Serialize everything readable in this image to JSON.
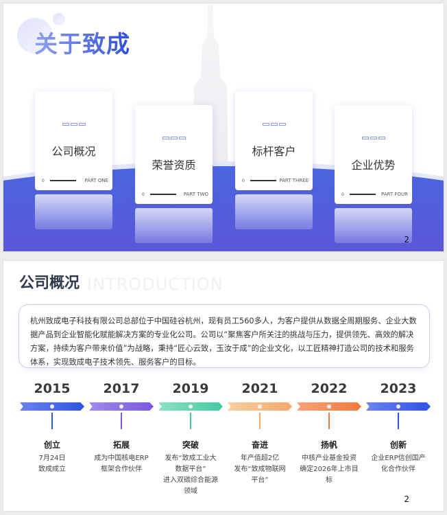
{
  "slide1": {
    "title": "关于致成",
    "page": "2",
    "cards": [
      {
        "title": "公司概况",
        "num": "0",
        "part": "PART ONE"
      },
      {
        "title": "荣誉资质",
        "num": "0",
        "part": "PART TWO"
      },
      {
        "title": "标杆客户",
        "num": "0",
        "part": "PART  THREE"
      },
      {
        "title": "企业优势",
        "num": "0",
        "part": "PART FOUR"
      }
    ]
  },
  "slide2": {
    "title": "公司概况",
    "watermark": "INTRODUCTION",
    "page": "2",
    "intro": "杭州致成电子科技有限公司总部位于中国硅谷杭州，现有员工560多人，为客户提供从数据全周期服务、企业大数据产品到企业智能化赋能解决方案的专业化公司。公司以“聚焦客户所关注的挑战与压力，提供领先、高效的解决方案，持续为客户带来价值”为战略，秉持“匠心云致，玉汝于成”的企业文化，以工匠精神打造公司的技术和服务体系，实现致成电子技术领先、服务客户的目标。",
    "timeline": [
      {
        "year": "2015",
        "title": "创立",
        "desc": "7月24日\n致成成立",
        "color": "#2f52e6",
        "color2": "#6b83f0"
      },
      {
        "year": "2017",
        "title": "拓展",
        "desc": "成为中国核电ERP\n框架合作伙伴",
        "color": "#7a5ae0",
        "color2": "#a08ae8"
      },
      {
        "year": "2019",
        "title": "突破",
        "desc": "发布“致成工业大\n数据平台”\n进入双碳综合能源\n领域",
        "color": "#43c9a0",
        "color2": "#8ee0c5"
      },
      {
        "year": "2021",
        "title": "奋进",
        "desc": "年产值超2亿\n发布“致成物联网\n平台”",
        "color": "#f3a86a",
        "color2": "#f8cfa5"
      },
      {
        "year": "2022",
        "title": "扬帆",
        "desc": "中核产业基金投资\n确定2026年上市目\n标",
        "color": "#f2783e",
        "color2": "#f7a47c"
      },
      {
        "year": "2023",
        "title": "创新",
        "desc": "企业ERP信创国产\n化合作伙伴",
        "color": "#2f52e6",
        "color2": "#6b83f0"
      }
    ]
  }
}
